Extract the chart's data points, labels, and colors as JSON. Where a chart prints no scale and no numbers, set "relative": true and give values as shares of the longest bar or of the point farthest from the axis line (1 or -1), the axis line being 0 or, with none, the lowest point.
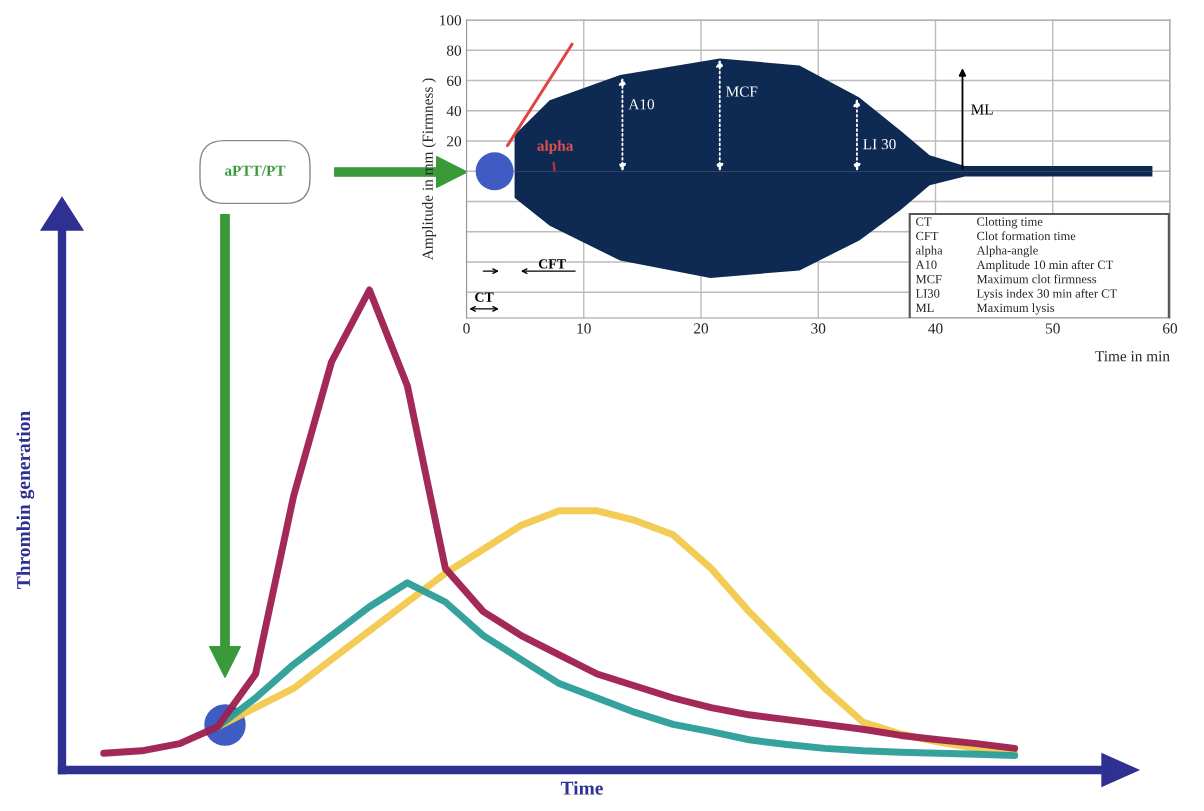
{
  "chart_data": [
    {
      "type": "line",
      "relative": true,
      "xlabel": "Time",
      "ylabel": "Thrombin generation",
      "categories": [
        null,
        null,
        null,
        null,
        null,
        null,
        null,
        null,
        null,
        null,
        null,
        null,
        null,
        null,
        null,
        null,
        null,
        null,
        null,
        null,
        null,
        null,
        null,
        null,
        null,
        null,
        null
      ],
      "series": [
        {
          "color": "#f2c94c",
          "values": [
            null,
            null,
            null,
            null,
            0.09,
            0.13,
            0.17,
            0.23,
            0.29,
            0.35,
            0.41,
            0.46,
            0.51,
            0.54,
            0.54,
            0.52,
            0.49,
            0.42,
            0.33,
            0.25,
            0.17,
            0.1,
            0.075,
            0.058,
            0.045,
            0.035,
            null
          ]
        },
        {
          "color": "#2a9d98",
          "values": [
            null,
            null,
            null,
            null,
            0.09,
            0.15,
            0.22,
            0.28,
            0.34,
            0.39,
            0.35,
            0.28,
            0.23,
            0.18,
            0.15,
            0.12,
            0.095,
            0.08,
            0.063,
            0.053,
            0.045,
            0.04,
            0.037,
            0.035,
            0.033,
            0.03,
            null
          ]
        },
        {
          "color": "#9e1f4f",
          "values": [
            null,
            0.035,
            0.04,
            0.055,
            0.09,
            0.2,
            0.57,
            0.85,
            1,
            0.8,
            0.42,
            0.33,
            0.28,
            0.24,
            0.2,
            0.175,
            0.15,
            0.13,
            0.115,
            0.105,
            0.095,
            0.085,
            0.072,
            0.063,
            0.055,
            0.045,
            null
          ]
        }
      ],
      "annotations": [
        "aPTT/PT"
      ]
    },
    {
      "type": "area",
      "xlabel": "Time in min",
      "ylabel": "Amplitude in mm (Firmness )",
      "grid": true,
      "xlim": [
        0,
        60
      ],
      "ylim": [
        -97,
        100
      ],
      "xticks": [
        0,
        10,
        20,
        30,
        40,
        50,
        60
      ],
      "yticks": [
        {
          "value": -80,
          "label": null
        },
        {
          "value": -60,
          "label": null
        },
        {
          "value": -40,
          "label": null
        },
        {
          "value": -20,
          "label": null
        },
        {
          "value": 0,
          "label": null
        },
        20,
        40,
        60,
        80,
        100
      ],
      "series": [
        {
          "color": "#0f2a52",
          "x": [
            4.1,
            7.1,
            13.1,
            21.6,
            28.4,
            33.5,
            37,
            39.5,
            42.5,
            58.5
          ],
          "values": [
            24,
            47,
            63.6,
            74.5,
            70,
            48.7,
            27,
            10.6,
            3.5,
            3.5
          ]
        },
        {
          "color": "#0f2a52",
          "x": [
            4.1,
            7.1,
            13.1,
            20.8,
            28.4,
            33.5,
            37,
            39.5,
            42.5,
            58.5
          ],
          "values": [
            -17.5,
            -36,
            -59,
            -70.5,
            -65.6,
            -45.7,
            -25.8,
            -9.3,
            -3.5,
            -3.5
          ]
        },
        {
          "type": "line",
          "color": "#e03a3a",
          "x": [
            3.5,
            9.0
          ],
          "values": [
            17,
            84
          ]
        },
        {
          "type": "scatter",
          "color": "#3e5cc4",
          "x": [
            2.4
          ],
          "values": [
            0
          ]
        }
      ],
      "annotations": [
        "alpha",
        "CFT",
        "CT",
        "ML",
        "CT",
        "Clotting time",
        "CFT",
        "Clot formation time",
        "alpha",
        "Alpha-angle",
        "A10",
        "Amplitude 10 min after CT",
        "MCF",
        "Maximum clot firmness",
        "LI30",
        "Lysis index 30 min after CT",
        "ML",
        "Maximum lysis",
        {
          "text": "A10",
          "x": 13.3,
          "y": 62
        },
        {
          "text": "MCF",
          "x": 21.6,
          "y": 74
        },
        {
          "text": "LI 30",
          "x": 33.3,
          "y": 48
        }
      ]
    }
  ]
}
